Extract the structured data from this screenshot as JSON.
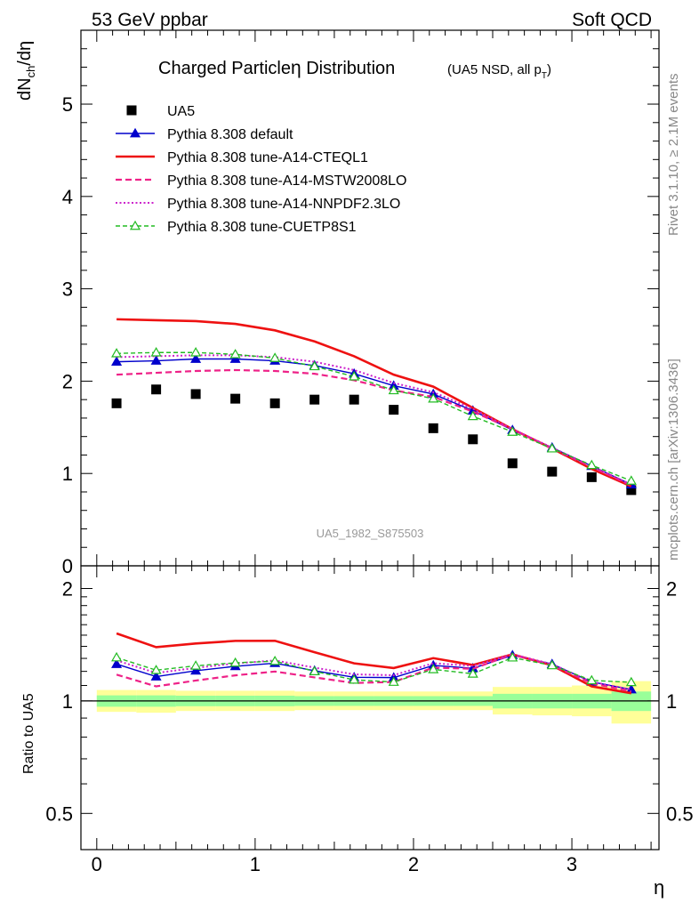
{
  "header": {
    "left": "53 GeV ppbar",
    "right": "Soft QCD"
  },
  "side_labels": {
    "rivet": "Rivet 3.1.10, ≥ 2.1M events",
    "mcplots": "mcplots.cern.ch [arXiv:1306.3436]"
  },
  "colors": {
    "band_outer": "#ffff99",
    "band_inner": "#99ff99",
    "data": "#000000"
  },
  "chart_data": [
    {
      "type": "line",
      "title": "Charged Particle",
      "title_symbol": "η",
      "title_rest": " Distribution",
      "subtitle": "(UA5 NSD, all p",
      "subtitle_sub": "T",
      "subtitle_end": ")",
      "ylabel_main": "dN",
      "ylabel_sub": "ch",
      "ylabel_end": "/dη",
      "watermark": "UA5_1982_S875503",
      "xlim": [
        -0.1,
        3.55
      ],
      "ylim": [
        0,
        5.8
      ],
      "yticks": [
        0,
        1,
        2,
        3,
        4,
        5
      ],
      "x": [
        0.125,
        0.375,
        0.625,
        0.875,
        1.125,
        1.375,
        1.625,
        1.875,
        2.125,
        2.375,
        2.625,
        2.875,
        3.125,
        3.375
      ],
      "series": [
        {
          "name": "UA5",
          "style": "data",
          "color": "#000000",
          "values": [
            1.76,
            1.91,
            1.86,
            1.81,
            1.76,
            1.8,
            1.8,
            1.69,
            1.49,
            1.37,
            1.11,
            1.02,
            0.96,
            0.82
          ]
        },
        {
          "name": "Pythia 8.308 default",
          "style": "solid",
          "color": "#0000cc",
          "marker": "triangle-filled",
          "values": [
            2.21,
            2.22,
            2.24,
            2.24,
            2.22,
            2.17,
            2.08,
            1.95,
            1.86,
            1.68,
            1.47,
            1.28,
            1.08,
            0.88
          ]
        },
        {
          "name": "Pythia 8.308 tune-A14-CTEQL1",
          "style": "solid-thick",
          "color": "#ee1111",
          "marker": "none",
          "values": [
            2.67,
            2.66,
            2.65,
            2.62,
            2.55,
            2.43,
            2.27,
            2.07,
            1.94,
            1.71,
            1.48,
            1.27,
            1.05,
            0.86
          ]
        },
        {
          "name": "Pythia 8.308 tune-A14-MSTW2008LO",
          "style": "dashed",
          "color": "#ee2288",
          "marker": "none",
          "values": [
            2.07,
            2.09,
            2.11,
            2.12,
            2.11,
            2.08,
            2.01,
            1.9,
            1.83,
            1.67,
            1.48,
            1.27,
            1.07,
            0.87
          ]
        },
        {
          "name": "Pythia 8.308 tune-A14-NNPDF2.3LO",
          "style": "dotted",
          "color": "#cc22cc",
          "marker": "none",
          "values": [
            2.26,
            2.27,
            2.28,
            2.28,
            2.26,
            2.21,
            2.12,
            1.98,
            1.88,
            1.7,
            1.48,
            1.28,
            1.08,
            0.88
          ]
        },
        {
          "name": "Pythia 8.308 tune-CUETP8S1",
          "style": "dashed-green",
          "color": "#22bb22",
          "marker": "triangle-open",
          "values": [
            2.3,
            2.31,
            2.31,
            2.29,
            2.25,
            2.16,
            2.05,
            1.9,
            1.81,
            1.62,
            1.45,
            1.27,
            1.09,
            0.92
          ]
        }
      ]
    },
    {
      "type": "line",
      "ylabel": "Ratio to UA5",
      "xlabel": "η",
      "xlim": [
        -0.1,
        3.55
      ],
      "ylim": [
        0.4,
        2.3
      ],
      "ylog": true,
      "xticks": [
        0,
        1,
        2,
        3
      ],
      "yticks": [
        0.5,
        1,
        2
      ],
      "ytick_labels": [
        "0.5",
        "1",
        "2"
      ],
      "band_x_edges": [
        0,
        0.25,
        0.5,
        0.75,
        1.0,
        1.25,
        1.5,
        1.75,
        2.0,
        2.25,
        2.5,
        2.75,
        3.0,
        3.25,
        3.5
      ],
      "band_outer": [
        [
          0.935,
          1.07
        ],
        [
          0.93,
          1.07
        ],
        [
          0.94,
          1.065
        ],
        [
          0.94,
          1.065
        ],
        [
          0.94,
          1.065
        ],
        [
          0.945,
          1.06
        ],
        [
          0.945,
          1.06
        ],
        [
          0.945,
          1.06
        ],
        [
          0.945,
          1.06
        ],
        [
          0.945,
          1.06
        ],
        [
          0.92,
          1.09
        ],
        [
          0.915,
          1.09
        ],
        [
          0.91,
          1.1
        ],
        [
          0.87,
          1.13
        ]
      ],
      "band_inner": [
        [
          0.965,
          1.035
        ],
        [
          0.965,
          1.035
        ],
        [
          0.968,
          1.033
        ],
        [
          0.968,
          1.033
        ],
        [
          0.968,
          1.033
        ],
        [
          0.97,
          1.03
        ],
        [
          0.97,
          1.03
        ],
        [
          0.97,
          1.03
        ],
        [
          0.97,
          1.03
        ],
        [
          0.97,
          1.03
        ],
        [
          0.955,
          1.045
        ],
        [
          0.955,
          1.045
        ],
        [
          0.955,
          1.045
        ],
        [
          0.94,
          1.06
        ]
      ],
      "series": [
        {
          "name": "Pythia 8.308 default",
          "color": "#0000cc",
          "style": "solid",
          "marker": "triangle-filled",
          "values": [
            1.255,
            1.162,
            1.205,
            1.238,
            1.262,
            1.205,
            1.157,
            1.155,
            1.245,
            1.223,
            1.325,
            1.255,
            1.125,
            1.073
          ]
        },
        {
          "name": "Pythia 8.308 tune-A14-CTEQL1",
          "color": "#ee1111",
          "style": "solid-thick",
          "marker": "none",
          "values": [
            1.516,
            1.393,
            1.425,
            1.448,
            1.449,
            1.35,
            1.261,
            1.225,
            1.302,
            1.248,
            1.333,
            1.245,
            1.094,
            1.049
          ]
        },
        {
          "name": "Pythia 8.308 tune-A14-MSTW2008LO",
          "color": "#ee2288",
          "style": "dashed",
          "marker": "none",
          "values": [
            1.176,
            1.094,
            1.134,
            1.171,
            1.199,
            1.156,
            1.117,
            1.124,
            1.228,
            1.219,
            1.333,
            1.245,
            1.115,
            1.061
          ]
        },
        {
          "name": "Pythia 8.308 tune-A14-NNPDF2.3LO",
          "color": "#cc22cc",
          "style": "dotted",
          "marker": "none",
          "values": [
            1.284,
            1.188,
            1.226,
            1.26,
            1.284,
            1.228,
            1.178,
            1.172,
            1.262,
            1.241,
            1.333,
            1.255,
            1.125,
            1.073
          ]
        },
        {
          "name": "Pythia 8.308 tune-CUETP8S1",
          "color": "#22bb22",
          "style": "dashed-green",
          "marker": "triangle-open",
          "values": [
            1.307,
            1.209,
            1.242,
            1.265,
            1.278,
            1.2,
            1.139,
            1.124,
            1.215,
            1.182,
            1.306,
            1.245,
            1.135,
            1.122
          ]
        }
      ]
    }
  ]
}
